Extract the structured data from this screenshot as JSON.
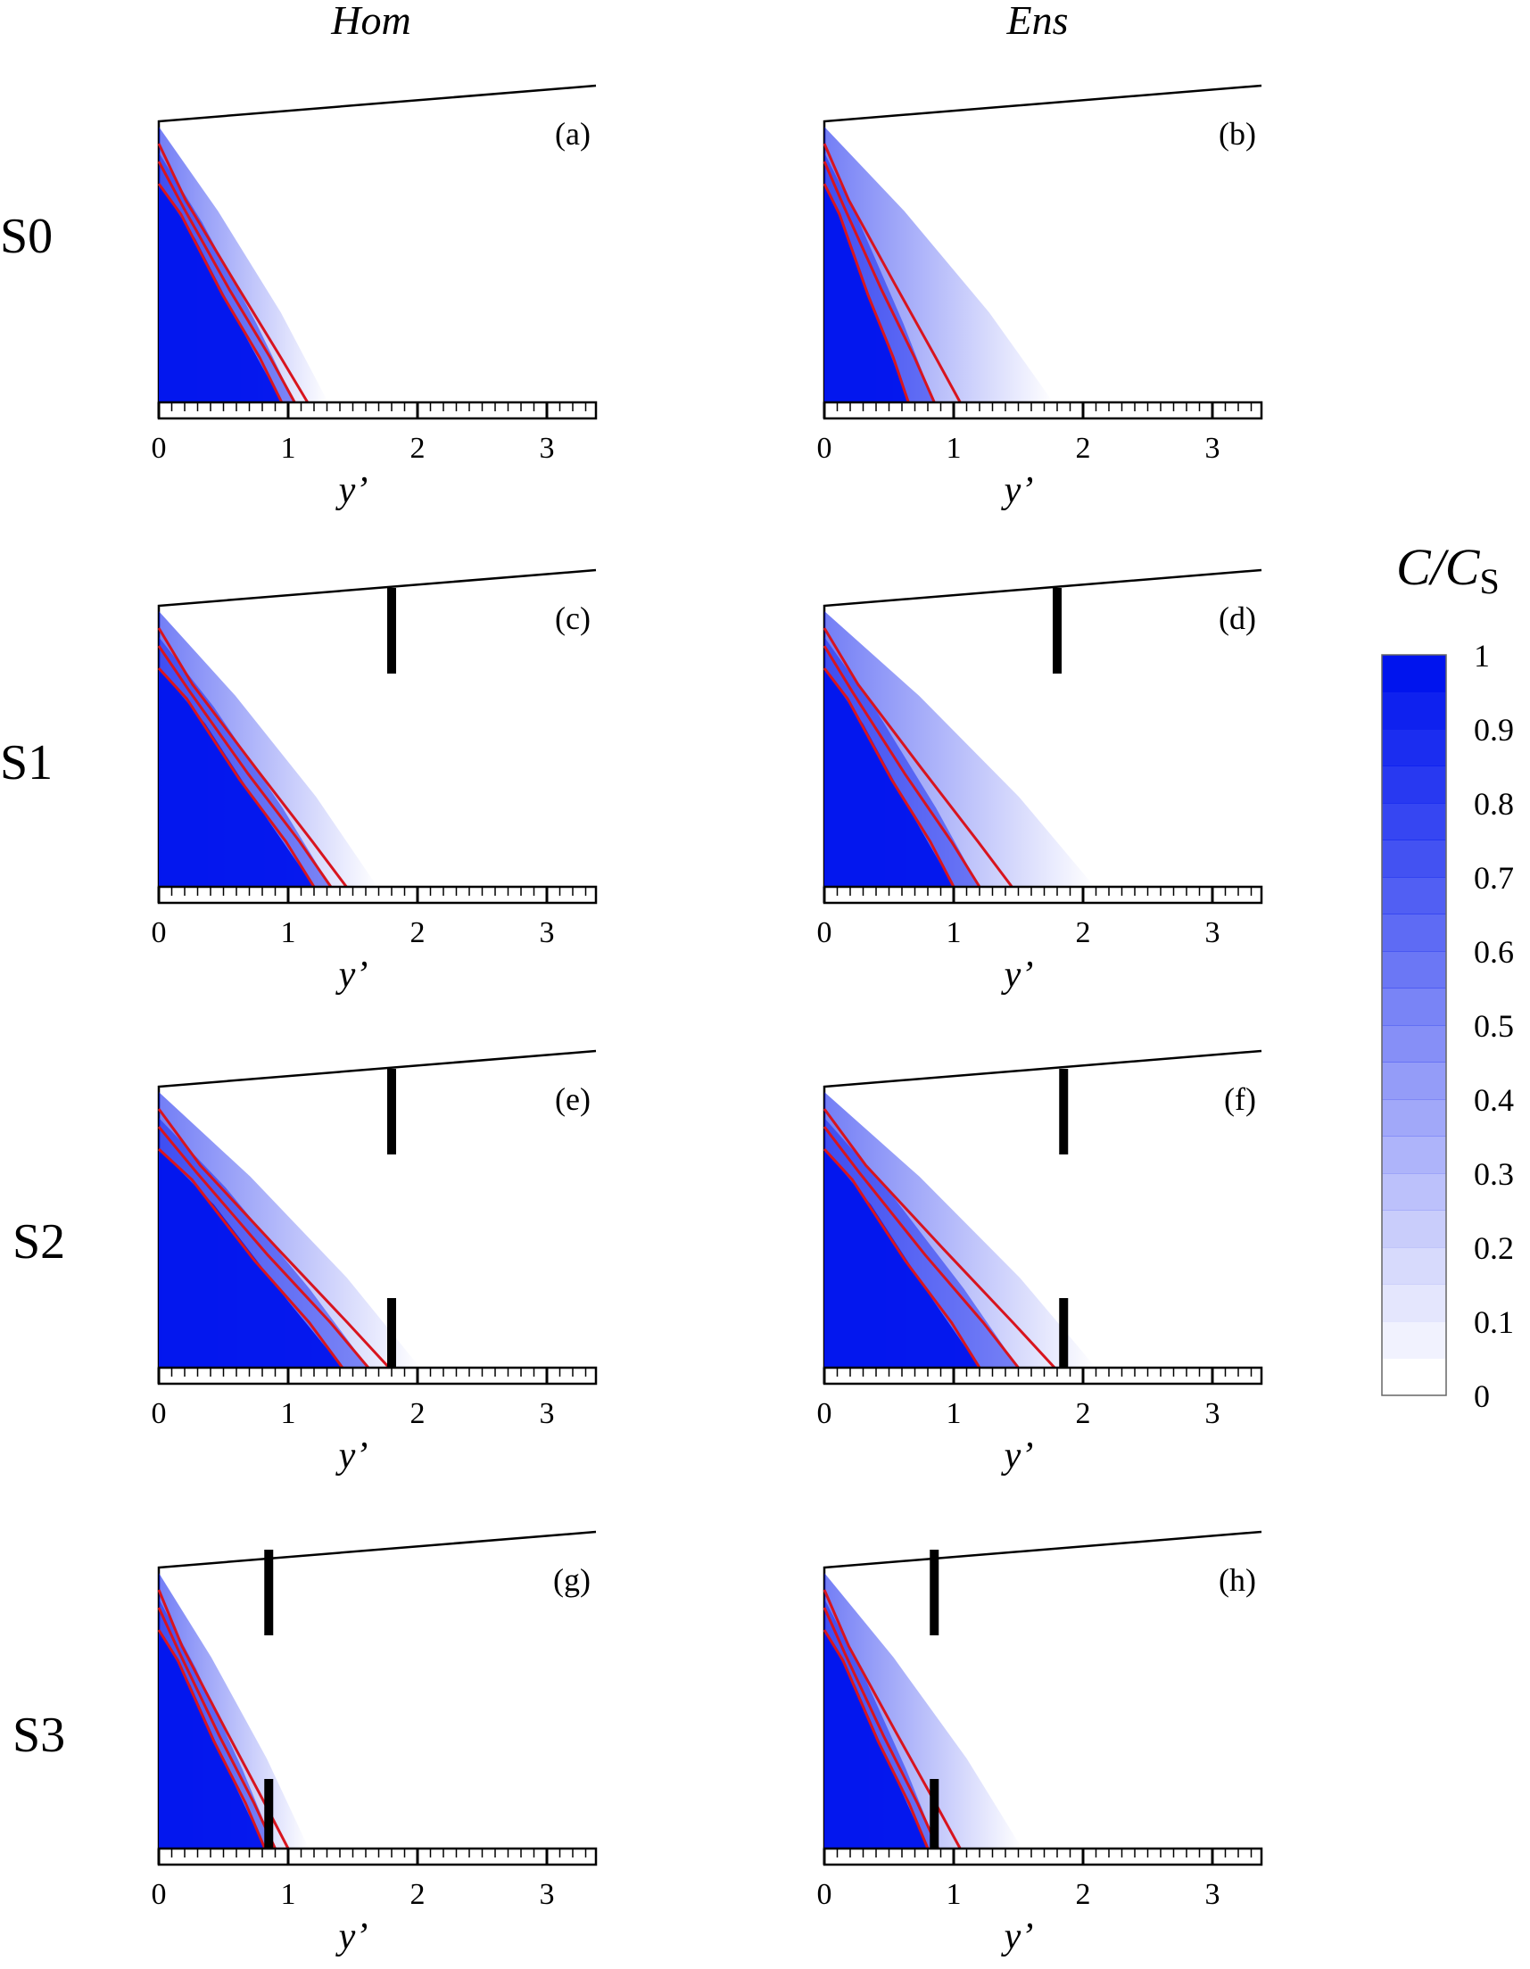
{
  "figure": {
    "column_titles": [
      "Hom",
      "Ens"
    ],
    "row_labels": [
      "S0",
      "S1",
      "S2",
      "S3"
    ],
    "xlabel": "y’",
    "colorbar": {
      "title_main": "C/C",
      "title_sub": "S",
      "ticks": [
        "1",
        "0.9",
        "0.8",
        "0.7",
        "0.6",
        "0.5",
        "0.4",
        "0.3",
        "0.2",
        "0.1",
        "0"
      ],
      "color_low": "#ffffff",
      "color_high": "#0014ee",
      "levels": 20
    },
    "contour_color": "#d8141e",
    "barrier_color": "#000000"
  },
  "chart_data": [
    {
      "type": "heatmap",
      "panel": "(a)",
      "row": "S0",
      "column": "Hom",
      "xlabel": "y’",
      "x_ticks": [
        "0",
        "1",
        "2",
        "3"
      ],
      "xlim": [
        0,
        3.4
      ],
      "barriers": [],
      "front_y": [
        1.15,
        1.05,
        0.95
      ],
      "fade": 0.1
    },
    {
      "type": "heatmap",
      "panel": "(b)",
      "row": "S0",
      "column": "Ens",
      "xlabel": "y’",
      "x_ticks": [
        "0",
        "1",
        "2",
        "3"
      ],
      "xlim": [
        0,
        3.4
      ],
      "barriers": [],
      "front_y": [
        1.05,
        0.85,
        0.65
      ],
      "fade": 0.45
    },
    {
      "type": "heatmap",
      "panel": "(c)",
      "row": "S1",
      "column": "Hom",
      "xlabel": "y’",
      "x_ticks": [
        "0",
        "1",
        "2",
        "3"
      ],
      "xlim": [
        0,
        3.4
      ],
      "barriers": [
        {
          "y": 1.8,
          "part": "top"
        }
      ],
      "front_y": [
        1.45,
        1.33,
        1.2
      ],
      "fade": 0.15
    },
    {
      "type": "heatmap",
      "panel": "(d)",
      "row": "S1",
      "column": "Ens",
      "xlabel": "y’",
      "x_ticks": [
        "0",
        "1",
        "2",
        "3"
      ],
      "xlim": [
        0,
        3.4
      ],
      "barriers": [
        {
          "y": 1.8,
          "part": "top"
        }
      ],
      "front_y": [
        1.45,
        1.2,
        1.0
      ],
      "fade": 0.4
    },
    {
      "type": "heatmap",
      "panel": "(e)",
      "row": "S2",
      "column": "Hom",
      "xlabel": "y’",
      "x_ticks": [
        "0",
        "1",
        "2",
        "3"
      ],
      "xlim": [
        0,
        3.4
      ],
      "barriers": [
        {
          "y": 1.8,
          "part": "top"
        },
        {
          "y": 1.8,
          "part": "bottom"
        }
      ],
      "front_y": [
        1.78,
        1.62,
        1.42
      ],
      "fade": 0.15
    },
    {
      "type": "heatmap",
      "panel": "(f)",
      "row": "S2",
      "column": "Ens",
      "xlabel": "y’",
      "x_ticks": [
        "0",
        "1",
        "2",
        "3"
      ],
      "xlim": [
        0,
        3.4
      ],
      "barriers": [
        {
          "y": 1.85,
          "part": "top"
        },
        {
          "y": 1.85,
          "part": "bottom"
        }
      ],
      "front_y": [
        1.78,
        1.5,
        1.2
      ],
      "fade": 0.2
    },
    {
      "type": "heatmap",
      "panel": "(g)",
      "row": "S3",
      "column": "Hom",
      "xlabel": "y’",
      "x_ticks": [
        "0",
        "1",
        "2",
        "3"
      ],
      "xlim": [
        0,
        3.4
      ],
      "barriers": [
        {
          "y": 0.85,
          "part": "top"
        },
        {
          "y": 0.85,
          "part": "bottom"
        }
      ],
      "front_y": [
        1.0,
        0.9,
        0.82
      ],
      "fade": 0.1
    },
    {
      "type": "heatmap",
      "panel": "(h)",
      "row": "S3",
      "column": "Ens",
      "xlabel": "y’",
      "x_ticks": [
        "0",
        "1",
        "2",
        "3"
      ],
      "xlim": [
        0,
        3.4
      ],
      "barriers": [
        {
          "y": 0.85,
          "part": "top"
        },
        {
          "y": 0.85,
          "part": "bottom"
        }
      ],
      "front_y": [
        1.05,
        0.88,
        0.8
      ],
      "fade": 0.3
    }
  ]
}
